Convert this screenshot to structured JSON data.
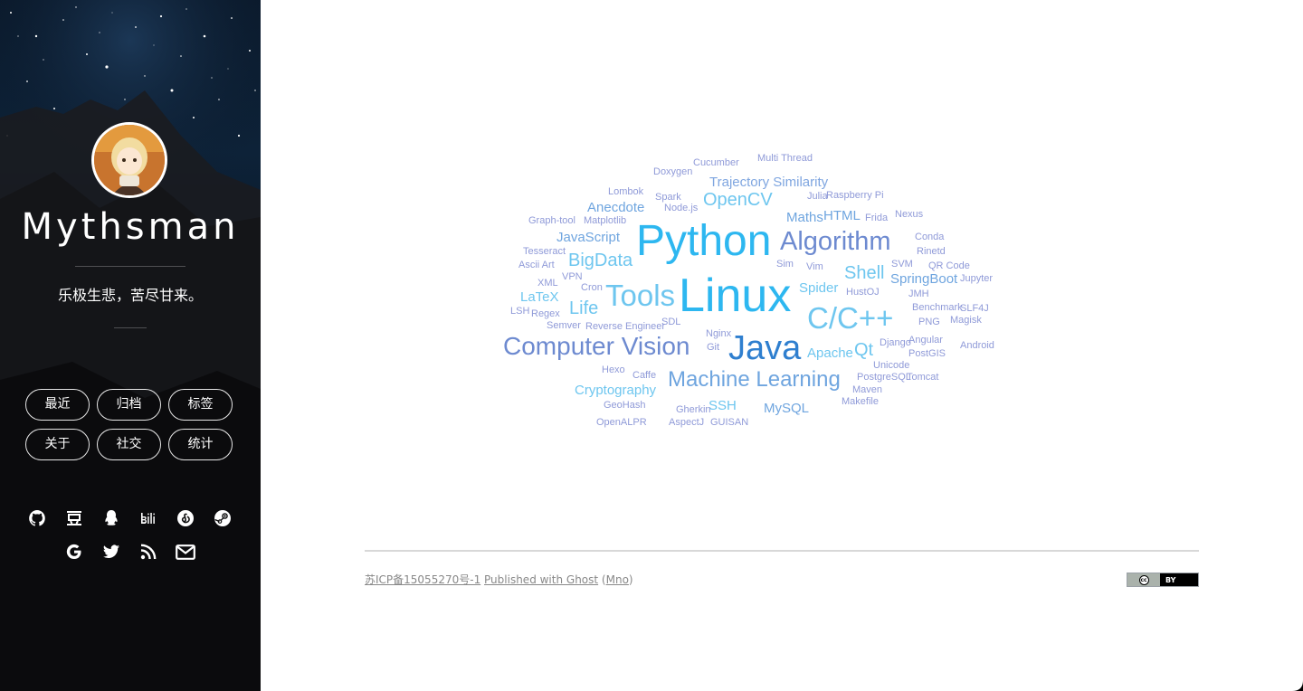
{
  "sidebar": {
    "site_name": "Mythsman",
    "motto": "乐极生悲，苦尽甘来。",
    "nav": [
      {
        "label": "最近"
      },
      {
        "label": "归档"
      },
      {
        "label": "标签"
      },
      {
        "label": "关于"
      },
      {
        "label": "社交"
      },
      {
        "label": "统计"
      }
    ],
    "social_icons": [
      "github-icon",
      "douban-icon",
      "qq-icon",
      "bilibili-icon",
      "netease-music-icon",
      "steam-icon",
      "google-icon",
      "twitter-icon",
      "rss-icon",
      "mail-icon"
    ]
  },
  "tag_cloud": {
    "tags": [
      {
        "text": "Multi Thread",
        "color": "#8f9ad8"
      },
      {
        "text": "Cucumber",
        "color": "#8f9ad8"
      },
      {
        "text": "Doxygen",
        "color": "#8f9ad8"
      },
      {
        "text": "Trajectory Similarity",
        "color": "#7fa6e0"
      },
      {
        "text": "Lombok",
        "color": "#8f9ad8"
      },
      {
        "text": "Spark",
        "color": "#8f9ad8"
      },
      {
        "text": "OpenCV",
        "color": "#6ec6ef"
      },
      {
        "text": "Julia",
        "color": "#8f9ad8"
      },
      {
        "text": "Raspberry Pi",
        "color": "#8f9ad8"
      },
      {
        "text": "Anecdote",
        "color": "#6fa5df"
      },
      {
        "text": "Node.js",
        "color": "#8f9ad8"
      },
      {
        "text": "Graph-tool",
        "color": "#8f9ad8"
      },
      {
        "text": "Matplotlib",
        "color": "#8f9ad8"
      },
      {
        "text": "Maths",
        "color": "#6fa5df"
      },
      {
        "text": "HTML",
        "color": "#6fa5df"
      },
      {
        "text": "Frida",
        "color": "#8f9ad8"
      },
      {
        "text": "Nexus",
        "color": "#8f9ad8"
      },
      {
        "text": "Python",
        "color": "#2db7f0"
      },
      {
        "text": "JavaScript",
        "color": "#6fa5df"
      },
      {
        "text": "Algorithm",
        "color": "#6d8ad0"
      },
      {
        "text": "Conda",
        "color": "#8f9ad8"
      },
      {
        "text": "Tesseract",
        "color": "#8f9ad8"
      },
      {
        "text": "Rinetd",
        "color": "#8f9ad8"
      },
      {
        "text": "BigData",
        "color": "#6ec6ef"
      },
      {
        "text": "Ascii Art",
        "color": "#8f9ad8"
      },
      {
        "text": "Sim",
        "color": "#8f9ad8"
      },
      {
        "text": "Vim",
        "color": "#8f9ad8"
      },
      {
        "text": "SVM",
        "color": "#8f9ad8"
      },
      {
        "text": "QR Code",
        "color": "#8f9ad8"
      },
      {
        "text": "Shell",
        "color": "#6ec6ef"
      },
      {
        "text": "VPN",
        "color": "#8f9ad8"
      },
      {
        "text": "SpringBoot",
        "color": "#6fa5df"
      },
      {
        "text": "Jupyter",
        "color": "#8f9ad8"
      },
      {
        "text": "XML",
        "color": "#8f9ad8"
      },
      {
        "text": "Cron",
        "color": "#8f9ad8"
      },
      {
        "text": "Tools",
        "color": "#6ec6ef"
      },
      {
        "text": "Linux",
        "color": "#2db7f0"
      },
      {
        "text": "Spider",
        "color": "#6ec6ef"
      },
      {
        "text": "HustOJ",
        "color": "#8f9ad8"
      },
      {
        "text": "JMH",
        "color": "#8f9ad8"
      },
      {
        "text": "LaTeX",
        "color": "#6ec6ef"
      },
      {
        "text": "Life",
        "color": "#6ec6ef"
      },
      {
        "text": "Benchmark",
        "color": "#8f9ad8"
      },
      {
        "text": "SLF4J",
        "color": "#8f9ad8"
      },
      {
        "text": "LSH",
        "color": "#8f9ad8"
      },
      {
        "text": "Regex",
        "color": "#8f9ad8"
      },
      {
        "text": "C/C++",
        "color": "#6ec6ef"
      },
      {
        "text": "SDL",
        "color": "#8f9ad8"
      },
      {
        "text": "PNG",
        "color": "#8f9ad8"
      },
      {
        "text": "Magisk",
        "color": "#8f9ad8"
      },
      {
        "text": "Semver",
        "color": "#8f9ad8"
      },
      {
        "text": "Reverse Engineer",
        "color": "#8f9ad8"
      },
      {
        "text": "Nginx",
        "color": "#8f9ad8"
      },
      {
        "text": "Computer Vision",
        "color": "#6d8ad0"
      },
      {
        "text": "Git",
        "color": "#8f9ad8"
      },
      {
        "text": "Java",
        "color": "#2f7fcf"
      },
      {
        "text": "Apache",
        "color": "#6ec6ef"
      },
      {
        "text": "Qt",
        "color": "#6ec6ef"
      },
      {
        "text": "Django",
        "color": "#8f9ad8"
      },
      {
        "text": "Angular",
        "color": "#8f9ad8"
      },
      {
        "text": "Android",
        "color": "#8f9ad8"
      },
      {
        "text": "PostGIS",
        "color": "#8f9ad8"
      },
      {
        "text": "Unicode",
        "color": "#8f9ad8"
      },
      {
        "text": "Hexo",
        "color": "#8f9ad8"
      },
      {
        "text": "Caffe",
        "color": "#8f9ad8"
      },
      {
        "text": "Machine Learning",
        "color": "#6fa5df"
      },
      {
        "text": "PostgreSQL",
        "color": "#8f9ad8"
      },
      {
        "text": "Tomcat",
        "color": "#8f9ad8"
      },
      {
        "text": "Cryptography",
        "color": "#6ec6ef"
      },
      {
        "text": "Maven",
        "color": "#8f9ad8"
      },
      {
        "text": "Makefile",
        "color": "#8f9ad8"
      },
      {
        "text": "GeoHash",
        "color": "#8f9ad8"
      },
      {
        "text": "SSH",
        "color": "#6ec6ef"
      },
      {
        "text": "Gherkin",
        "color": "#8f9ad8"
      },
      {
        "text": "MySQL",
        "color": "#6fa5df"
      },
      {
        "text": "OpenALPR",
        "color": "#8f9ad8"
      },
      {
        "text": "AspectJ",
        "color": "#8f9ad8"
      },
      {
        "text": "GUISAN",
        "color": "#8f9ad8"
      }
    ]
  },
  "footer": {
    "icp": "苏ICP备15055270号-1",
    "published": "Published with Ghost",
    "open_paren": " (",
    "theme": "Mno",
    "close_paren": ")",
    "license_label": "BY",
    "license_symbol": "cc"
  }
}
